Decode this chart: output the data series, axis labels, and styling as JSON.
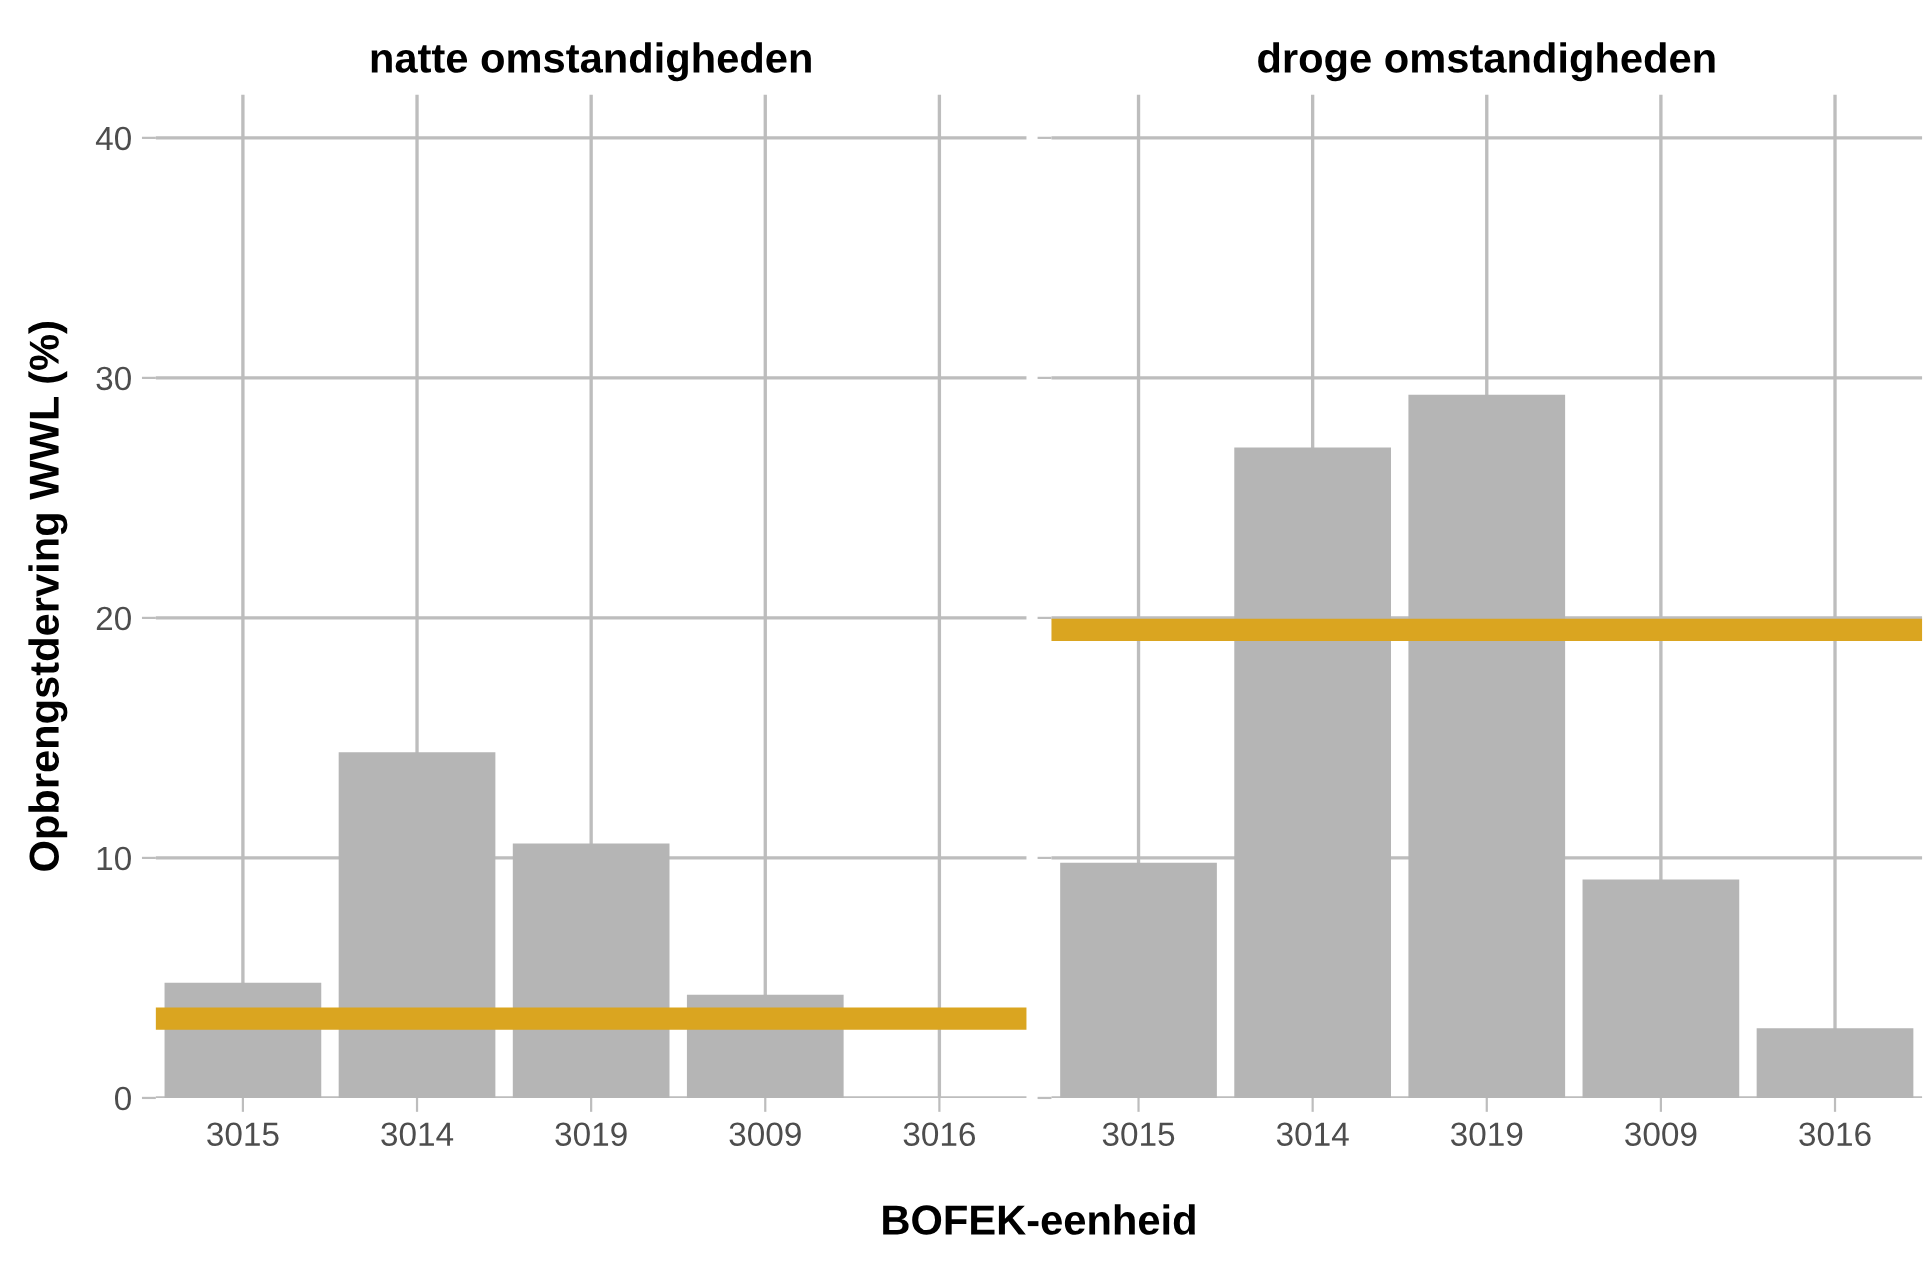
{
  "chart_data": [
    {
      "type": "bar",
      "title": "natte omstandigheden",
      "ylabel": "Opbrengstderving WWL (%)",
      "xlabel": "BOFEK-eenheid",
      "categories": [
        "3015",
        "3014",
        "3019",
        "3009",
        "3016"
      ],
      "values": [
        4.8,
        14.4,
        10.6,
        4.3,
        null
      ],
      "color": "#b5b5b5",
      "ylim": [
        0,
        41.8
      ],
      "yticks": [
        0,
        10,
        20,
        30,
        40
      ],
      "grid": true,
      "ref_lines": [
        {
          "axis": "y",
          "value": 3.3,
          "color": "#daa520"
        }
      ]
    },
    {
      "type": "bar",
      "title": "droge omstandigheden",
      "categories": [
        "3015",
        "3014",
        "3019",
        "3009",
        "3016"
      ],
      "values": [
        9.8,
        27.1,
        29.3,
        9.1,
        2.9
      ],
      "color": "#b5b5b5",
      "ylim": [
        0,
        41.8
      ],
      "yticks": [
        0,
        10,
        20,
        30,
        40
      ],
      "grid": true,
      "tick_labels": "x",
      "ref_lines": [
        {
          "axis": "y",
          "value": 19.5,
          "color": "#daa520"
        }
      ]
    }
  ]
}
